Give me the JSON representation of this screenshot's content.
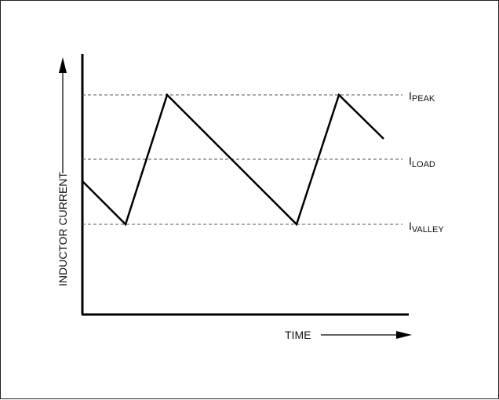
{
  "diagram": {
    "y_axis_label": "INDUCTOR CURRENT",
    "x_axis_label": "TIME",
    "levels": {
      "peak": {
        "symbol": "I",
        "subscript": "PEAK"
      },
      "load": {
        "symbol": "I",
        "subscript": "LOAD"
      },
      "valley": {
        "symbol": "I",
        "subscript": "VALLEY"
      }
    },
    "colors": {
      "line": "#000000",
      "dashed": "#555555",
      "border": "#222222"
    }
  }
}
